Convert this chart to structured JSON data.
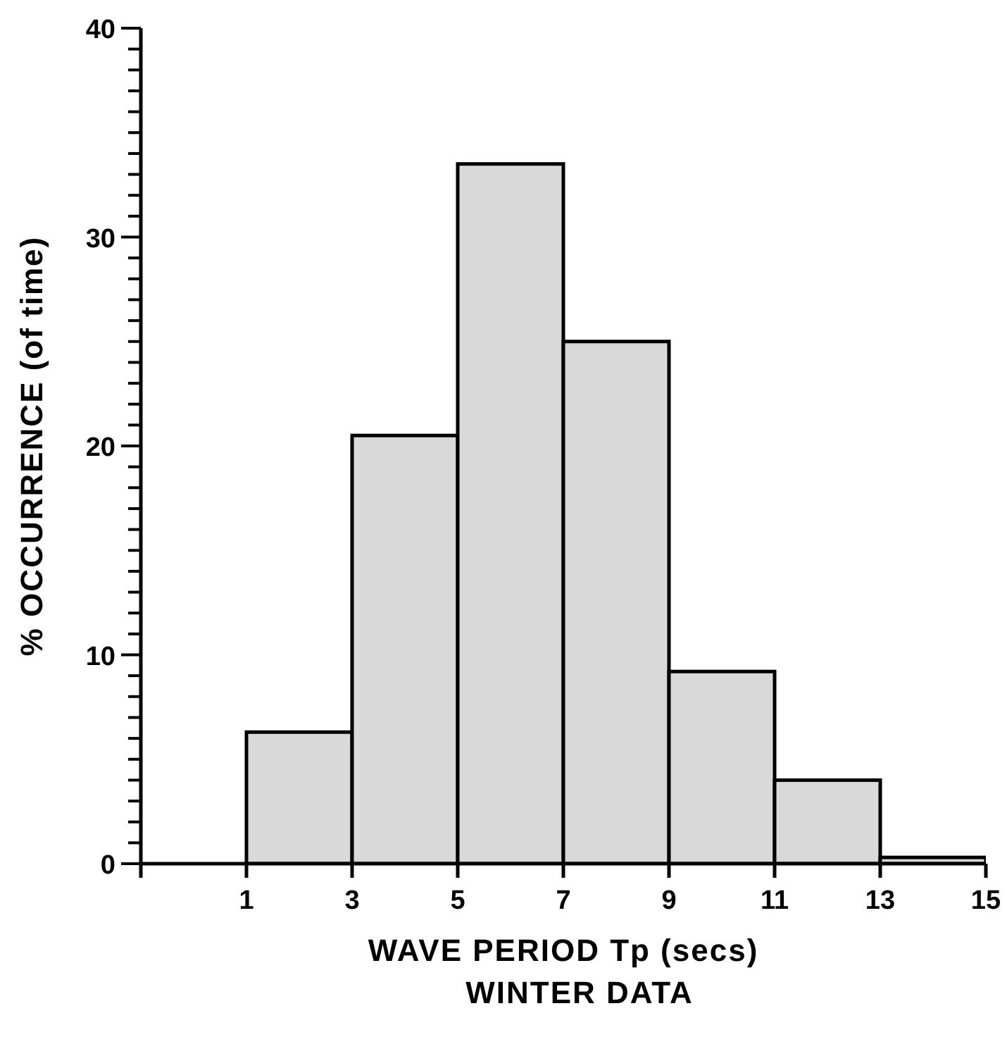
{
  "chart_data": {
    "type": "histogram",
    "title": "WINTER DATA",
    "xlabel": "WAVE PERIOD Tp (secs)",
    "ylabel": "% OCCURRENCE (of time)",
    "bins": [
      1,
      3,
      5,
      7,
      9,
      11,
      13,
      15
    ],
    "values": [
      6.3,
      20.5,
      33.5,
      25.0,
      9.2,
      4.0,
      0.3
    ],
    "color": "#d9d9d9",
    "xlim": [
      -1,
      15
    ],
    "xticks": [
      {
        "value": -1,
        "label": null
      },
      1,
      3,
      5,
      7,
      9,
      11,
      13,
      15
    ],
    "ylim": [
      0,
      40
    ],
    "yticks": [
      0,
      {
        "value": 1,
        "label": null
      },
      {
        "value": 2,
        "label": null
      },
      {
        "value": 3,
        "label": null
      },
      {
        "value": 4,
        "label": null
      },
      {
        "value": 5,
        "label": null
      },
      {
        "value": 6,
        "label": null
      },
      {
        "value": 7,
        "label": null
      },
      {
        "value": 8,
        "label": null
      },
      {
        "value": 9,
        "label": null
      },
      10,
      {
        "value": 11,
        "label": null
      },
      {
        "value": 12,
        "label": null
      },
      {
        "value": 13,
        "label": null
      },
      {
        "value": 14,
        "label": null
      },
      {
        "value": 15,
        "label": null
      },
      {
        "value": 16,
        "label": null
      },
      {
        "value": 17,
        "label": null
      },
      {
        "value": 18,
        "label": null
      },
      {
        "value": 19,
        "label": null
      },
      20,
      {
        "value": 21,
        "label": null
      },
      {
        "value": 22,
        "label": null
      },
      {
        "value": 23,
        "label": null
      },
      {
        "value": 24,
        "label": null
      },
      {
        "value": 25,
        "label": null
      },
      {
        "value": 26,
        "label": null
      },
      {
        "value": 27,
        "label": null
      },
      {
        "value": 28,
        "label": null
      },
      {
        "value": 29,
        "label": null
      },
      30,
      {
        "value": 31,
        "label": null
      },
      {
        "value": 32,
        "label": null
      },
      {
        "value": 33,
        "label": null
      },
      {
        "value": 34,
        "label": null
      },
      {
        "value": 35,
        "label": null
      },
      {
        "value": 36,
        "label": null
      },
      {
        "value": 37,
        "label": null
      },
      {
        "value": 38,
        "label": null
      },
      {
        "value": 39,
        "label": null
      },
      40
    ],
    "grid": false,
    "legend": false
  }
}
